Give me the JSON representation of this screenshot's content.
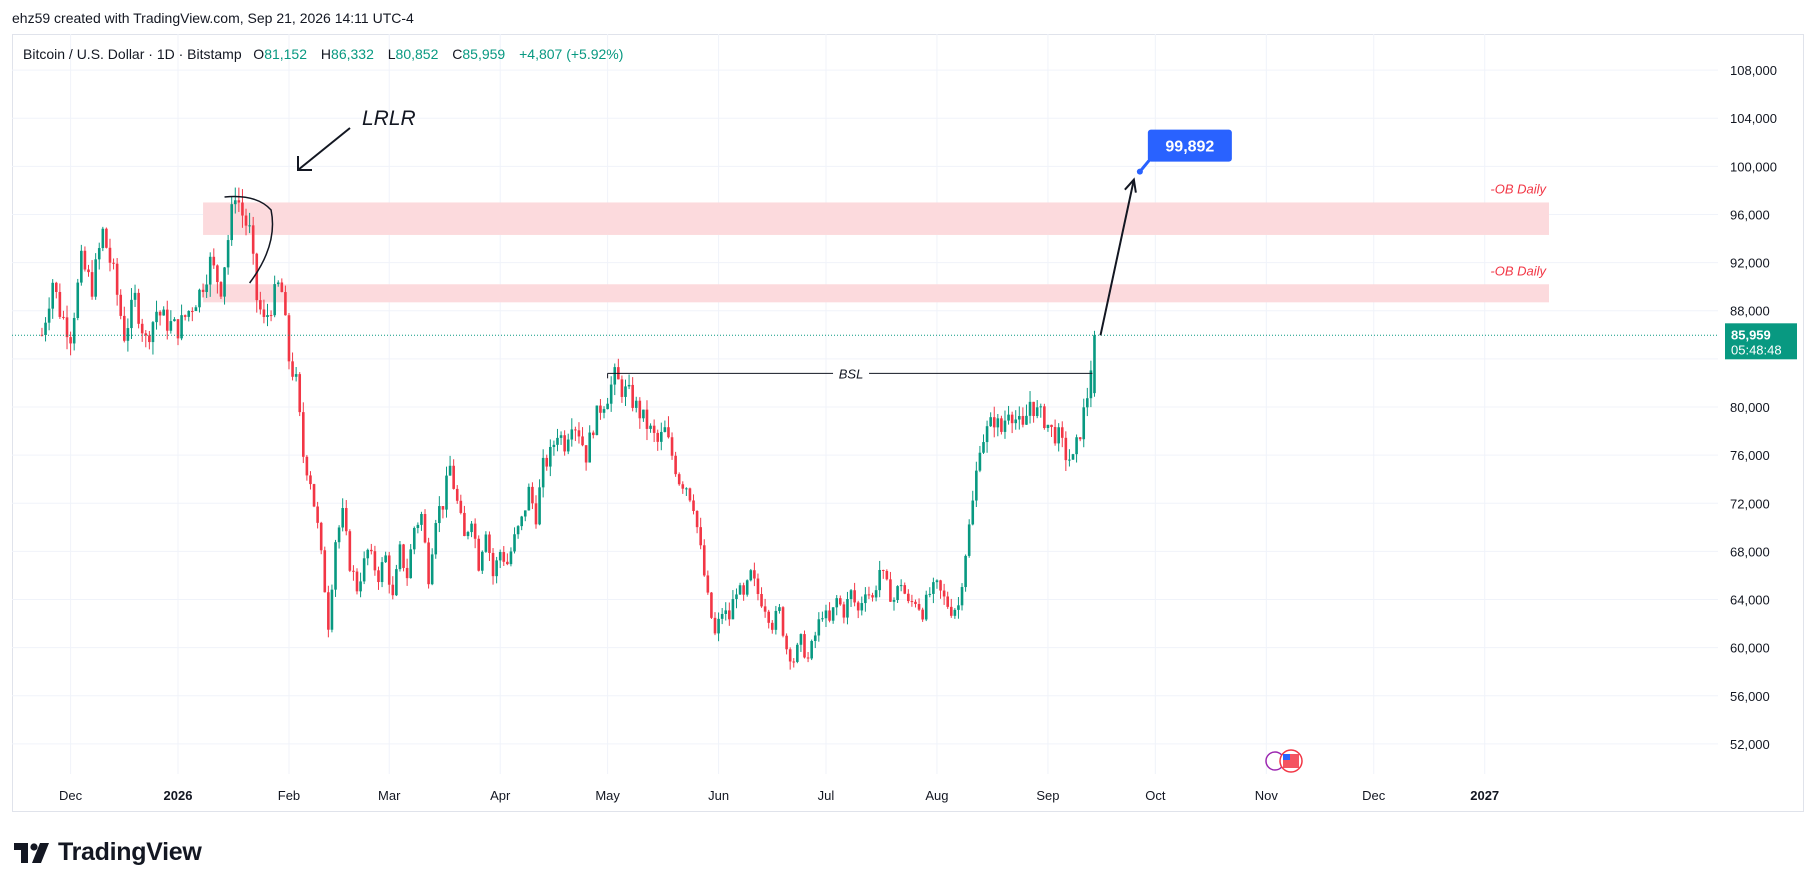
{
  "header": {
    "text": "ehz59 created with TradingView.com, Sep 21, 2026 14:11 UTC-4"
  },
  "legend": {
    "symbol": "Bitcoin / U.S. Dollar · 1D · Bitstamp",
    "open_key": "O",
    "open": "81,152",
    "high_key": "H",
    "high": "86,332",
    "low_key": "L",
    "low": "80,852",
    "close_key": "C",
    "close": "85,959",
    "change": "+4,807 (+5.92%)"
  },
  "footer": {
    "brand": "TradingView"
  },
  "colors": {
    "up": "#089981",
    "down": "#f23645",
    "ob_zone": "#fcdadd",
    "ob_text": "#f23645",
    "target": "#2962ff"
  },
  "chart_data": {
    "type": "candlestick",
    "y_ticks": [
      "52,000",
      "56,000",
      "60,000",
      "64,000",
      "68,000",
      "72,000",
      "76,000",
      "80,000",
      "88,000",
      "92,000",
      "96,000",
      "100,000",
      "104,000",
      "108,000"
    ],
    "x_ticks": [
      {
        "label": "Dec",
        "day": -30,
        "bold": false
      },
      {
        "label": "2026",
        "day": 0,
        "bold": true
      },
      {
        "label": "Feb",
        "day": 31,
        "bold": false
      },
      {
        "label": "Mar",
        "day": 59,
        "bold": false
      },
      {
        "label": "Apr",
        "day": 90,
        "bold": false
      },
      {
        "label": "May",
        "day": 120,
        "bold": false
      },
      {
        "label": "Jun",
        "day": 151,
        "bold": false
      },
      {
        "label": "Jul",
        "day": 181,
        "bold": false
      },
      {
        "label": "Aug",
        "day": 212,
        "bold": false
      },
      {
        "label": "Sep",
        "day": 243,
        "bold": false
      },
      {
        "label": "Oct",
        "day": 273,
        "bold": false
      },
      {
        "label": "Nov",
        "day": 304,
        "bold": false
      },
      {
        "label": "Dec",
        "day": 334,
        "bold": false
      },
      {
        "label": "2027",
        "day": 365,
        "bold": true
      }
    ],
    "y_range": [
      49500,
      111000
    ],
    "price_path": [
      [
        -38,
        86000
      ],
      [
        -35,
        90500
      ],
      [
        -33,
        88000
      ],
      [
        -30,
        86000
      ],
      [
        -27,
        92000
      ],
      [
        -24,
        90000
      ],
      [
        -21,
        94500
      ],
      [
        -18,
        91000
      ],
      [
        -15,
        86000
      ],
      [
        -12,
        89000
      ],
      [
        -9,
        85500
      ],
      [
        -6,
        88000
      ],
      [
        -3,
        87000
      ],
      [
        0,
        86500
      ],
      [
        3,
        88000
      ],
      [
        6,
        89500
      ],
      [
        9,
        92000
      ],
      [
        12,
        90000
      ],
      [
        14,
        94000
      ],
      [
        16,
        98000
      ],
      [
        18,
        96000
      ],
      [
        20,
        94500
      ],
      [
        22,
        89000
      ],
      [
        24,
        87000
      ],
      [
        26,
        88500
      ],
      [
        28,
        90000
      ],
      [
        29,
        89500
      ],
      [
        31,
        84000
      ],
      [
        33,
        82000
      ],
      [
        35,
        76000
      ],
      [
        37,
        74000
      ],
      [
        39,
        70000
      ],
      [
        41,
        65000
      ],
      [
        42,
        62000
      ],
      [
        44,
        69000
      ],
      [
        46,
        71000
      ],
      [
        48,
        67000
      ],
      [
        50,
        65000
      ],
      [
        53,
        68000
      ],
      [
        56,
        66000
      ],
      [
        58,
        67500
      ],
      [
        60,
        64000
      ],
      [
        62,
        68000
      ],
      [
        64,
        66000
      ],
      [
        66,
        70000
      ],
      [
        68,
        71000
      ],
      [
        70,
        66000
      ],
      [
        72,
        71000
      ],
      [
        74,
        72000
      ],
      [
        76,
        75000
      ],
      [
        78,
        72000
      ],
      [
        80,
        69000
      ],
      [
        82,
        71000
      ],
      [
        84,
        67000
      ],
      [
        86,
        70000
      ],
      [
        88,
        66000
      ],
      [
        90,
        68000
      ],
      [
        92,
        67000
      ],
      [
        94,
        69000
      ],
      [
        96,
        70500
      ],
      [
        98,
        73000
      ],
      [
        100,
        71000
      ],
      [
        102,
        75000
      ],
      [
        104,
        76000
      ],
      [
        106,
        78000
      ],
      [
        108,
        77000
      ],
      [
        110,
        79000
      ],
      [
        112,
        78000
      ],
      [
        114,
        76000
      ],
      [
        116,
        78500
      ],
      [
        118,
        80000
      ],
      [
        120,
        81000
      ],
      [
        122,
        82500
      ],
      [
        124,
        81500
      ],
      [
        126,
        81000
      ],
      [
        128,
        80000
      ],
      [
        130,
        79000
      ],
      [
        132,
        78000
      ],
      [
        134,
        77000
      ],
      [
        136,
        78000
      ],
      [
        138,
        76000
      ],
      [
        140,
        74000
      ],
      [
        142,
        73500
      ],
      [
        144,
        72000
      ],
      [
        146,
        68000
      ],
      [
        148,
        64000
      ],
      [
        150,
        61000
      ],
      [
        152,
        63000
      ],
      [
        154,
        62500
      ],
      [
        156,
        65000
      ],
      [
        158,
        64000
      ],
      [
        160,
        66000
      ],
      [
        162,
        64500
      ],
      [
        164,
        63500
      ],
      [
        166,
        62000
      ],
      [
        168,
        63000
      ],
      [
        170,
        60000
      ],
      [
        172,
        59000
      ],
      [
        174,
        60500
      ],
      [
        176,
        59000
      ],
      [
        178,
        61000
      ],
      [
        180,
        63000
      ],
      [
        182,
        62000
      ],
      [
        184,
        64000
      ],
      [
        186,
        63000
      ],
      [
        188,
        64500
      ],
      [
        190,
        63000
      ],
      [
        192,
        65000
      ],
      [
        194,
        64000
      ],
      [
        196,
        66500
      ],
      [
        198,
        65000
      ],
      [
        200,
        64000
      ],
      [
        202,
        65500
      ],
      [
        204,
        63500
      ],
      [
        206,
        64000
      ],
      [
        208,
        63000
      ],
      [
        210,
        64500
      ],
      [
        212,
        65000
      ],
      [
        214,
        64000
      ],
      [
        216,
        63200
      ],
      [
        218,
        63500
      ],
      [
        220,
        68000
      ],
      [
        222,
        72000
      ],
      [
        224,
        77000
      ],
      [
        226,
        78000
      ],
      [
        228,
        79000
      ],
      [
        230,
        78000
      ],
      [
        232,
        80000
      ],
      [
        234,
        79000
      ],
      [
        236,
        78000
      ],
      [
        238,
        80500
      ],
      [
        240,
        79500
      ],
      [
        242,
        79000
      ],
      [
        244,
        78000
      ],
      [
        246,
        77500
      ],
      [
        248,
        76000
      ],
      [
        250,
        75500
      ],
      [
        252,
        78000
      ],
      [
        254,
        81000
      ],
      [
        256,
        85959
      ]
    ],
    "last_price": "85,959",
    "countdown": "05:48:48",
    "ob_zones": [
      {
        "top": 97000,
        "bottom": 94300,
        "label": "-OB Daily"
      },
      {
        "top": 90200,
        "bottom": 88700,
        "label": "-OB Daily"
      }
    ],
    "bsl": {
      "price": 82800,
      "label": "BSL",
      "from_day": 120,
      "to_day": 256
    },
    "target": {
      "price": 99892,
      "label": "99,892",
      "day": 267
    },
    "annotation_text": "LRLR"
  }
}
